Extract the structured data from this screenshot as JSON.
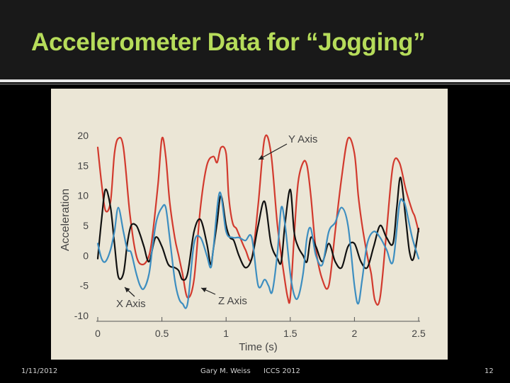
{
  "slide": {
    "title": "Accelerometer Data for “Jogging”",
    "footer_date": "1/11/2012",
    "footer_author": "Gary M. Weiss",
    "footer_venue": "ICCS 2012",
    "footer_page": "12"
  },
  "colors": {
    "title": "#b6dc5a",
    "chart_background": "#ebe6d6",
    "y_series": "#d23a2e",
    "x_series": "#111111",
    "z_series": "#3d8ec0"
  },
  "chart_data": {
    "type": "line",
    "xlabel": "Time (s)",
    "ylabel": "Acceleration",
    "xlim": [
      0,
      2.5
    ],
    "ylim": [
      -10,
      20
    ],
    "xticks": [
      "0",
      "0.5",
      "1",
      "1.5",
      "2",
      "2.5"
    ],
    "yticks": [
      "20",
      "15",
      "10",
      "5",
      "0",
      "-5",
      "-10"
    ],
    "grid": false,
    "annotations": [
      {
        "text": "Y Axis",
        "series": "Y Axis",
        "at": [
          1.25,
          16
        ]
      },
      {
        "text": "X Axis",
        "series": "X Axis",
        "at": [
          0.22,
          -4.5
        ]
      },
      {
        "text": "Z Axis",
        "series": "Z Axis",
        "at": [
          0.8,
          -5.2
        ]
      }
    ],
    "series": [
      {
        "name": "Y Axis",
        "x": [
          0,
          0.03,
          0.06,
          0.1,
          0.13,
          0.16,
          0.2,
          0.25,
          0.3,
          0.35,
          0.4,
          0.43,
          0.47,
          0.5,
          0.53,
          0.56,
          0.6,
          0.63,
          0.66,
          0.7,
          0.75,
          0.8,
          0.85,
          0.9,
          0.93,
          0.96,
          1.0,
          1.02,
          1.05,
          1.08,
          1.1,
          1.15,
          1.2,
          1.25,
          1.3,
          1.35,
          1.4,
          1.45,
          1.48,
          1.5,
          1.53,
          1.56,
          1.6,
          1.63,
          1.66,
          1.7,
          1.75,
          1.8,
          1.85,
          1.9,
          1.95,
          2.0,
          2.03,
          2.06,
          2.1,
          2.13,
          2.16,
          2.2,
          2.25,
          2.3,
          2.35,
          2.4,
          2.45,
          2.47,
          2.5
        ],
        "values": [
          18,
          12,
          7.5,
          9,
          17,
          19.5,
          18,
          7,
          0,
          -1.5,
          0,
          4,
          12,
          19.5,
          16.5,
          9,
          3,
          0,
          -3,
          -7,
          -4,
          8,
          15,
          16.5,
          15.5,
          18,
          17,
          10,
          5.5,
          4.5,
          3.5,
          1,
          -0.5,
          8.5,
          19.5,
          17,
          5,
          -3,
          -7,
          -7,
          3,
          12,
          15.5,
          15,
          10,
          1,
          -4,
          -5,
          4,
          13,
          19.5,
          17,
          10,
          5,
          0,
          -3,
          -7.5,
          -7,
          4,
          15,
          15.5,
          11,
          7.5,
          6.5,
          4
        ]
      },
      {
        "name": "X Axis",
        "x": [
          0,
          0.03,
          0.06,
          0.1,
          0.13,
          0.16,
          0.2,
          0.23,
          0.26,
          0.3,
          0.33,
          0.36,
          0.4,
          0.45,
          0.5,
          0.55,
          0.6,
          0.63,
          0.66,
          0.7,
          0.75,
          0.8,
          0.85,
          0.88,
          0.9,
          0.93,
          0.96,
          1.0,
          1.03,
          1.06,
          1.1,
          1.15,
          1.2,
          1.25,
          1.3,
          1.35,
          1.4,
          1.43,
          1.46,
          1.5,
          1.53,
          1.56,
          1.6,
          1.63,
          1.66,
          1.7,
          1.75,
          1.8,
          1.85,
          1.9,
          1.95,
          2.0,
          2.05,
          2.1,
          2.15,
          2.2,
          2.25,
          2.3,
          2.33,
          2.36,
          2.4,
          2.43,
          2.46,
          2.5
        ],
        "values": [
          -0.5,
          6,
          11,
          8,
          2,
          -3.5,
          -3,
          2,
          5,
          5,
          3.5,
          1.5,
          -1,
          3,
          1.5,
          -1.5,
          -2,
          -2.5,
          -4,
          -3,
          4,
          6,
          2,
          -1.5,
          1,
          5.5,
          10,
          5,
          3,
          2.5,
          0,
          -2,
          -0.5,
          5,
          9,
          2,
          -0.5,
          -1,
          5.5,
          11,
          4,
          1.5,
          0,
          -1,
          3,
          1.5,
          -1,
          2,
          -1,
          -2,
          1.5,
          2,
          -1,
          -2,
          1.5,
          5,
          3,
          2,
          8,
          13,
          6,
          0.5,
          -0.5,
          4.5
        ]
      },
      {
        "name": "Z Axis",
        "x": [
          0,
          0.03,
          0.06,
          0.1,
          0.13,
          0.16,
          0.2,
          0.23,
          0.26,
          0.3,
          0.33,
          0.36,
          0.4,
          0.43,
          0.46,
          0.5,
          0.53,
          0.56,
          0.6,
          0.63,
          0.66,
          0.7,
          0.75,
          0.8,
          0.85,
          0.88,
          0.9,
          0.95,
          1.0,
          1.05,
          1.1,
          1.15,
          1.2,
          1.25,
          1.3,
          1.33,
          1.36,
          1.4,
          1.43,
          1.46,
          1.5,
          1.53,
          1.56,
          1.6,
          1.63,
          1.66,
          1.7,
          1.75,
          1.8,
          1.85,
          1.9,
          1.95,
          2.0,
          2.03,
          2.06,
          2.1,
          2.15,
          2.2,
          2.25,
          2.3,
          2.35,
          2.38,
          2.4,
          2.45,
          2.5
        ],
        "values": [
          2,
          -0.5,
          -1,
          1,
          4,
          8,
          4,
          1,
          0.5,
          -3,
          -5,
          -5.5,
          -3,
          2,
          6,
          8,
          8,
          3,
          -4,
          -7,
          -8,
          -8,
          2,
          3,
          0,
          -2,
          1,
          10.5,
          4,
          3,
          3,
          2.5,
          3,
          -5,
          -4,
          -5,
          -6,
          0.5,
          8,
          5,
          -3,
          -6.5,
          -7,
          -3,
          3,
          4.5,
          0,
          -1.5,
          4,
          5.5,
          8,
          5,
          -5,
          -8,
          -4,
          2,
          4,
          3,
          1,
          -1,
          8.5,
          9,
          8,
          3,
          -0.5
        ]
      }
    ]
  }
}
